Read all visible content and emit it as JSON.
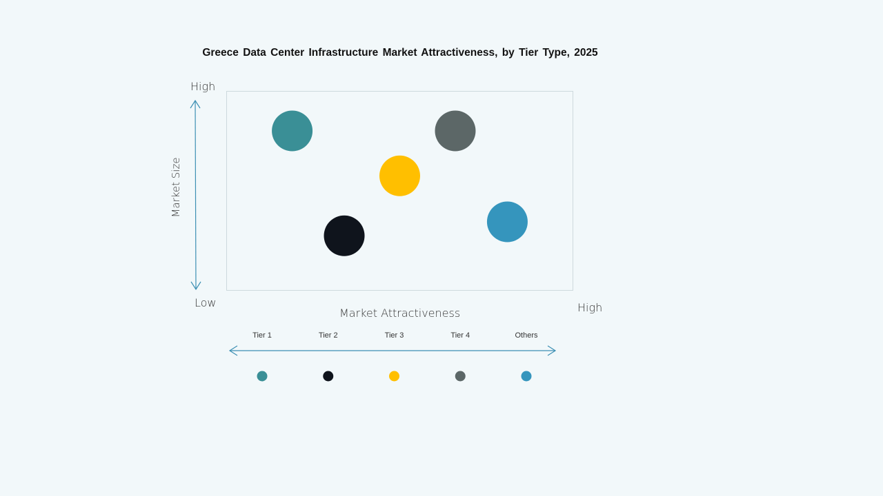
{
  "chart_data": {
    "type": "scatter",
    "title": "Greece Data Center Infrastructure  Market Attractiveness,  by Tier Type, 2025",
    "xlabel": "Market Attractiveness",
    "ylabel": "Market Size",
    "x_low_label": "",
    "x_high_label": "High",
    "y_high_label": "High",
    "y_low_label": "Low",
    "xlim": [
      0,
      10
    ],
    "ylim": [
      0,
      10
    ],
    "grid": false,
    "legend_placement": "bottom",
    "points": [
      {
        "name": "Tier 1",
        "x": 1.9,
        "y": 8.0,
        "color": "#3a8f96"
      },
      {
        "name": "Tier 2",
        "x": 3.4,
        "y": 2.75,
        "color": "#0f141c"
      },
      {
        "name": "Tier 3",
        "x": 5.0,
        "y": 5.75,
        "color": "#ffbf00"
      },
      {
        "name": "Tier 4",
        "x": 6.6,
        "y": 8.0,
        "color": "#5c6767"
      },
      {
        "name": "Others",
        "x": 8.1,
        "y": 3.45,
        "color": "#3595bd"
      }
    ]
  }
}
